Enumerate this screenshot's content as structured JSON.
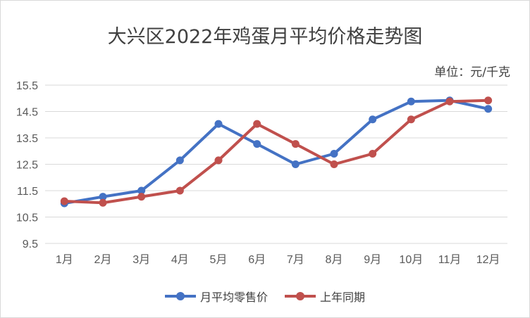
{
  "chart_data": {
    "type": "line",
    "title": "大兴区2022年鸡蛋月平均价格走势图",
    "unit_label": "单位：元/千克",
    "categories": [
      "1月",
      "2月",
      "3月",
      "4月",
      "5月",
      "6月",
      "7月",
      "8月",
      "9月",
      "10月",
      "11月",
      "12月"
    ],
    "y_ticks": [
      "15.5",
      "14.5",
      "13.5",
      "12.5",
      "11.5",
      "10.5",
      "9.5"
    ],
    "ylim": [
      9.5,
      15.5
    ],
    "grid": true,
    "legend_position": "bottom",
    "series": [
      {
        "name": "月平均零售价",
        "color": "#4472c4",
        "values": [
          11.02,
          11.27,
          11.5,
          12.65,
          14.03,
          13.27,
          12.5,
          12.9,
          14.2,
          14.88,
          14.92,
          14.6
        ]
      },
      {
        "name": "上年同期",
        "color": "#c0504d",
        "values": [
          11.1,
          11.04,
          11.27,
          11.5,
          12.65,
          14.03,
          13.27,
          12.5,
          12.9,
          14.2,
          14.88,
          14.92
        ]
      }
    ]
  }
}
